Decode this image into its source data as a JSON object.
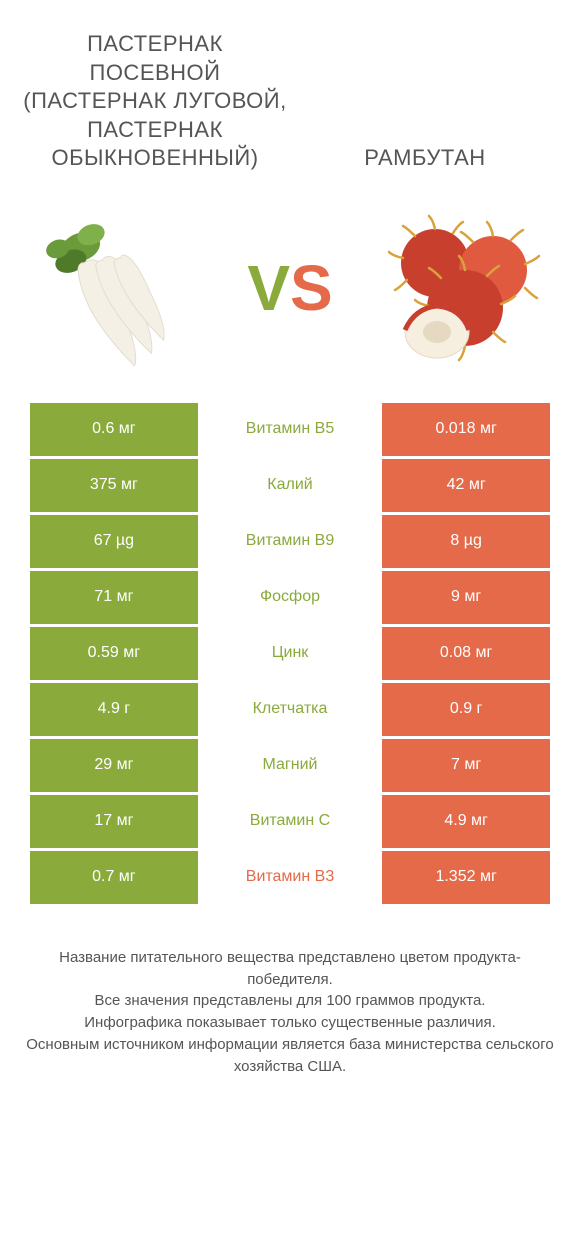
{
  "header": {
    "left_title": "ПАСТЕРНАК ПОСЕВНОЙ (ПАСТЕРНАК ЛУГОВОЙ, ПАСТЕРНАК ОБЫКНОВЕННЫЙ)",
    "right_title": "РАМБУТАН"
  },
  "vs": {
    "v": "V",
    "s": "S"
  },
  "colors": {
    "left_bg": "#8aaa3b",
    "right_bg": "#e46a4a",
    "mid_bg": "#ffffff",
    "winner_left_text": "#8aaa3b",
    "winner_right_text": "#e46a4a",
    "body_text": "#555555"
  },
  "comparison": {
    "type": "table",
    "rows": [
      {
        "left": "0.6 мг",
        "label": "Витамин B5",
        "right": "0.018 мг",
        "winner": "left"
      },
      {
        "left": "375 мг",
        "label": "Калий",
        "right": "42 мг",
        "winner": "left"
      },
      {
        "left": "67 µg",
        "label": "Витамин B9",
        "right": "8 µg",
        "winner": "left"
      },
      {
        "left": "71 мг",
        "label": "Фосфор",
        "right": "9 мг",
        "winner": "left"
      },
      {
        "left": "0.59 мг",
        "label": "Цинк",
        "right": "0.08 мг",
        "winner": "left"
      },
      {
        "left": "4.9 г",
        "label": "Клетчатка",
        "right": "0.9 г",
        "winner": "left"
      },
      {
        "left": "29 мг",
        "label": "Магний",
        "right": "7 мг",
        "winner": "left"
      },
      {
        "left": "17 мг",
        "label": "Витамин C",
        "right": "4.9 мг",
        "winner": "left"
      },
      {
        "left": "0.7 мг",
        "label": "Витамин B3",
        "right": "1.352 мг",
        "winner": "right"
      }
    ]
  },
  "footer": {
    "line1": "Название питательного вещества представлено цветом продукта-победителя.",
    "line2": "Все значения представлены для 100 граммов продукта.",
    "line3": "Инфографика показывает только существенные различия.",
    "line4": "Основным источником информации является база министерства сельского хозяйства США."
  },
  "images": {
    "left_alt": "parsnip-illustration",
    "right_alt": "rambutan-illustration",
    "parsnip_colors": {
      "root": "#f4f0e6",
      "root_shadow": "#e2ddcf",
      "leaf": "#6a9a3a",
      "leaf_dark": "#4f7a2a"
    },
    "rambutan_colors": {
      "skin": "#c93f2e",
      "skin_light": "#e05a3f",
      "hair": "#d9a23a",
      "flesh": "#f6efe0",
      "flesh_shadow": "#e6d9c2"
    }
  }
}
